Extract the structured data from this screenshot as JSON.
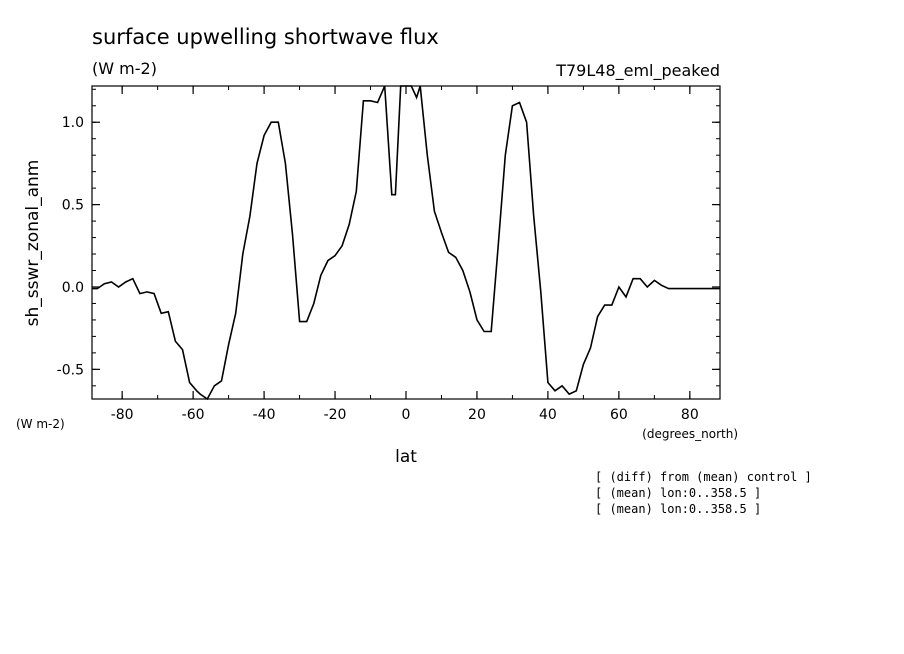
{
  "chart_data": {
    "type": "line",
    "title": "surface upwelling shortwave flux",
    "units": "(W m-2)",
    "run_label": "T79L48_eml_peaked",
    "ylabel": "sh_sswr_zonal_anm",
    "y_units": "(W m-2)",
    "xlabel": "lat",
    "x_units": "(degrees_north)",
    "xlim": [
      -88.5,
      88.5
    ],
    "ylim": [
      -0.68,
      1.22
    ],
    "x_ticks": [
      -80,
      -60,
      -40,
      -20,
      0,
      20,
      40,
      60,
      80
    ],
    "x_tick_labels": [
      "-80",
      "-60",
      "-40",
      "-20",
      "0",
      "20",
      "40",
      "60",
      "80"
    ],
    "y_ticks": [
      -0.5,
      0.0,
      0.5,
      1.0
    ],
    "y_tick_labels": [
      "-0.5",
      "0.0",
      "0.5",
      "1.0"
    ],
    "x": [
      -88.5,
      -87,
      -85,
      -83,
      -81,
      -79,
      -77,
      -75,
      -73,
      -71,
      -69,
      -67,
      -65,
      -63,
      -61,
      -59,
      -58,
      -56,
      -54,
      -52,
      -50,
      -48,
      -46,
      -44,
      -42,
      -40,
      -38,
      -36,
      -34,
      -32,
      -30,
      -28,
      -26,
      -24,
      -22,
      -20,
      -18,
      -16,
      -14,
      -12,
      -10,
      -8,
      -6,
      -4,
      -3,
      -1.5,
      -0.5,
      0.5,
      1.5,
      3,
      4,
      6,
      8,
      10,
      12,
      14,
      16,
      18,
      20,
      22,
      24,
      26,
      28,
      30,
      32,
      34,
      36,
      38,
      40,
      42,
      44,
      46,
      48,
      50,
      52,
      54,
      56,
      58,
      60,
      62,
      64,
      66,
      68,
      70,
      72,
      74,
      76,
      78,
      80,
      82,
      84,
      86,
      88,
      88.5
    ],
    "values": [
      -0.01,
      -0.01,
      0.02,
      0.03,
      0.0,
      0.03,
      0.05,
      -0.04,
      -0.03,
      -0.04,
      -0.16,
      -0.15,
      -0.33,
      -0.38,
      -0.58,
      -0.63,
      -0.65,
      -0.68,
      -0.6,
      -0.57,
      -0.35,
      -0.16,
      0.2,
      0.43,
      0.75,
      0.92,
      1.0,
      1.0,
      0.75,
      0.32,
      -0.21,
      -0.21,
      -0.1,
      0.07,
      0.16,
      0.19,
      0.25,
      0.38,
      0.58,
      1.13,
      1.13,
      1.12,
      1.22,
      0.56,
      0.56,
      1.22,
      1.22,
      1.22,
      1.22,
      1.15,
      1.22,
      0.8,
      0.46,
      0.33,
      0.21,
      0.18,
      0.1,
      -0.03,
      -0.2,
      -0.27,
      -0.27,
      0.25,
      0.8,
      1.1,
      1.12,
      1.0,
      0.43,
      -0.03,
      -0.58,
      -0.63,
      -0.6,
      -0.65,
      -0.63,
      -0.47,
      -0.37,
      -0.18,
      -0.11,
      -0.11,
      0.0,
      -0.06,
      0.05,
      0.05,
      0.0,
      0.04,
      0.01,
      -0.01,
      -0.01,
      -0.01,
      -0.01,
      -0.01,
      -0.01,
      -0.01,
      -0.01,
      -0.01
    ]
  },
  "notes": [
    "[ (diff) from (mean) control ]",
    "[ (mean) lon:0..358.5 ]",
    "[ (mean) lon:0..358.5 ]"
  ]
}
